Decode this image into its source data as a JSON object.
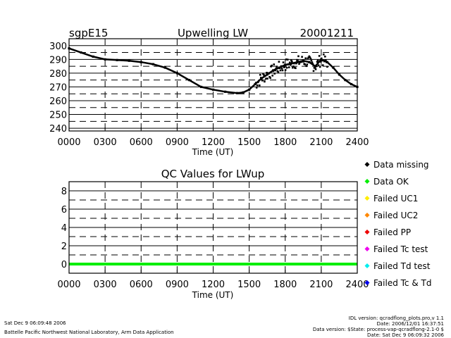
{
  "colors": {
    "missing": "#000000",
    "ok": "#00ee00",
    "uc1": "#ffee00",
    "uc2": "#ff8800",
    "pp": "#ee0000",
    "tc": "#ee00ee",
    "td": "#00eeee",
    "tctd": "#0000ee"
  },
  "chart_data": [
    {
      "type": "scatter",
      "title": "Upwelling LW",
      "site": "sgpE15",
      "date": "20001211",
      "xlabel": "Time (UT)",
      "ylabel": "",
      "xlim": [
        0,
        2400
      ],
      "ylim": [
        238,
        305
      ],
      "xticks": [
        0,
        300,
        600,
        900,
        1200,
        1500,
        1800,
        2100,
        2400
      ],
      "xtick_labels": [
        "0000",
        "0300",
        "0600",
        "0900",
        "1200",
        "1500",
        "1800",
        "2100",
        "2400"
      ],
      "yticks": [
        240,
        250,
        260,
        270,
        280,
        290,
        300
      ],
      "ytick_labels": [
        "240",
        "250",
        "260",
        "270",
        "280",
        "290",
        "300"
      ],
      "hgrid": [
        245,
        255,
        265,
        275,
        285,
        295
      ],
      "series": [
        {
          "name": "Upwelling LW",
          "x": [
            0,
            100,
            200,
            300,
            400,
            500,
            600,
            700,
            800,
            900,
            1000,
            1100,
            1200,
            1300,
            1400,
            1450,
            1500,
            1550,
            1600,
            1650,
            1700,
            1750,
            1800,
            1850,
            1900,
            1950,
            2000,
            2050,
            2100,
            2150,
            2200,
            2250,
            2300,
            2350,
            2400
          ],
          "y": [
            298,
            295,
            292,
            290,
            289.5,
            289,
            288,
            286.5,
            284,
            280,
            275,
            270,
            268,
            266.5,
            265.5,
            266,
            268,
            272,
            276,
            279,
            282,
            284,
            286,
            287,
            288,
            289,
            288,
            285,
            290,
            288,
            284,
            279,
            275,
            272,
            270
          ]
        }
      ]
    },
    {
      "type": "line",
      "title": "QC Values for LWup",
      "xlabel": "Time (UT)",
      "ylabel": "",
      "xlim": [
        0,
        2400
      ],
      "ylim": [
        -1,
        9
      ],
      "xticks": [
        0,
        300,
        600,
        900,
        1200,
        1500,
        1800,
        2100,
        2400
      ],
      "xtick_labels": [
        "0000",
        "0300",
        "0600",
        "0900",
        "1200",
        "1500",
        "1800",
        "2100",
        "2400"
      ],
      "yticks": [
        0,
        2,
        4,
        6,
        8
      ],
      "ytick_labels": [
        "0",
        "2",
        "4",
        "6",
        "8"
      ],
      "series": [
        {
          "name": "Data OK",
          "x": [
            0,
            2400
          ],
          "y": [
            0,
            0
          ]
        }
      ]
    }
  ],
  "legend": [
    {
      "label": "Data missing",
      "color": "#000000"
    },
    {
      "label": "Data OK",
      "color": "#00ee00"
    },
    {
      "label": "Failed UC1",
      "color": "#ffee00"
    },
    {
      "label": "Failed UC2",
      "color": "#ff8800"
    },
    {
      "label": "Failed PP",
      "color": "#ee0000"
    },
    {
      "label": "Failed Tc test",
      "color": "#ee00ee"
    },
    {
      "label": "Failed Td test",
      "color": "#00eeee"
    },
    {
      "label": "Failed Tc & Td",
      "color": "#0000ee"
    }
  ],
  "footer": {
    "left_line1": "Sat Dec  9 06:09:48 2006",
    "left_line2": "Battelle Pacific Northwest National Laboratory, Arm Data Application",
    "right_line1": "IDL version: qcradflong_plots.pro,v 1.1",
    "right_line2": "Date: 2006/12/01 16:37:51",
    "right_line3": "Data version: $State: process-vap-qcradflong-2.1-0 $",
    "right_line4": "Date: Sat Dec  9 06:09:32 2006"
  }
}
